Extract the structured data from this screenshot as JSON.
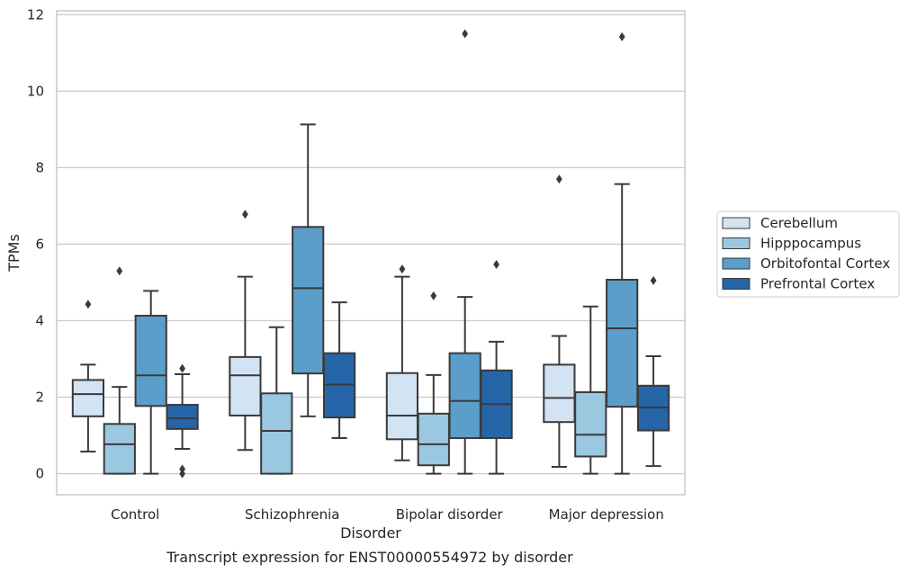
{
  "chart_data": {
    "type": "box",
    "caption": "Transcript expression for ENST00000554972 by disorder",
    "xlabel": "Disorder",
    "ylabel": "TPMs",
    "ylim": [
      -0.55,
      12.1
    ],
    "yticks": [
      0,
      2,
      4,
      6,
      8,
      10,
      12
    ],
    "grid": true,
    "legend_position": "right",
    "categories": [
      "Control",
      "Schizophrenia",
      "Bipolar disorder",
      "Major depression"
    ],
    "series": [
      {
        "name": "Cerebellum",
        "color": "#d2e3f3",
        "boxes": [
          {
            "whisker_low": 0.58,
            "q1": 1.5,
            "median": 2.08,
            "q3": 2.45,
            "whisker_high": 2.85,
            "outliers": [
              4.43
            ]
          },
          {
            "whisker_low": 0.62,
            "q1": 1.52,
            "median": 2.57,
            "q3": 3.05,
            "whisker_high": 5.15,
            "outliers": [
              6.78
            ]
          },
          {
            "whisker_low": 0.35,
            "q1": 0.9,
            "median": 1.52,
            "q3": 2.63,
            "whisker_high": 5.15,
            "outliers": [
              5.35
            ]
          },
          {
            "whisker_low": 0.18,
            "q1": 1.35,
            "median": 1.98,
            "q3": 2.85,
            "whisker_high": 3.6,
            "outliers": [
              7.7
            ]
          }
        ]
      },
      {
        "name": "Hipppocampus",
        "color": "#9ac8e0",
        "boxes": [
          {
            "whisker_low": 0.0,
            "q1": 0.0,
            "median": 0.77,
            "q3": 1.3,
            "whisker_high": 2.27,
            "outliers": [
              5.3
            ]
          },
          {
            "whisker_low": 0.0,
            "q1": 0.0,
            "median": 1.12,
            "q3": 2.1,
            "whisker_high": 3.83,
            "outliers": []
          },
          {
            "whisker_low": 0.0,
            "q1": 0.22,
            "median": 0.77,
            "q3": 1.57,
            "whisker_high": 2.58,
            "outliers": [
              4.65
            ]
          },
          {
            "whisker_low": 0.0,
            "q1": 0.45,
            "median": 1.02,
            "q3": 2.13,
            "whisker_high": 4.37,
            "outliers": []
          }
        ]
      },
      {
        "name": "Orbitofontal Cortex",
        "color": "#5a9ec9",
        "boxes": [
          {
            "whisker_low": 0.0,
            "q1": 1.77,
            "median": 2.57,
            "q3": 4.13,
            "whisker_high": 4.78,
            "outliers": []
          },
          {
            "whisker_low": 1.5,
            "q1": 2.62,
            "median": 4.85,
            "q3": 6.45,
            "whisker_high": 9.13,
            "outliers": []
          },
          {
            "whisker_low": 0.0,
            "q1": 0.93,
            "median": 1.9,
            "q3": 3.15,
            "whisker_high": 4.62,
            "outliers": [
              11.5
            ]
          },
          {
            "whisker_low": 0.0,
            "q1": 1.75,
            "median": 3.8,
            "q3": 5.07,
            "whisker_high": 7.57,
            "outliers": [
              11.42
            ]
          }
        ]
      },
      {
        "name": "Prefrontal Cortex",
        "color": "#2565a8",
        "boxes": [
          {
            "whisker_low": 0.65,
            "q1": 1.17,
            "median": 1.45,
            "q3": 1.8,
            "whisker_high": 2.6,
            "outliers": [
              2.75,
              0.12,
              0.0
            ]
          },
          {
            "whisker_low": 0.93,
            "q1": 1.47,
            "median": 2.33,
            "q3": 3.15,
            "whisker_high": 4.48,
            "outliers": []
          },
          {
            "whisker_low": 0.0,
            "q1": 0.93,
            "median": 1.82,
            "q3": 2.7,
            "whisker_high": 3.45,
            "outliers": [
              5.47
            ]
          },
          {
            "whisker_low": 0.2,
            "q1": 1.13,
            "median": 1.73,
            "q3": 2.3,
            "whisker_high": 3.07,
            "outliers": [
              5.05
            ]
          }
        ]
      }
    ]
  }
}
